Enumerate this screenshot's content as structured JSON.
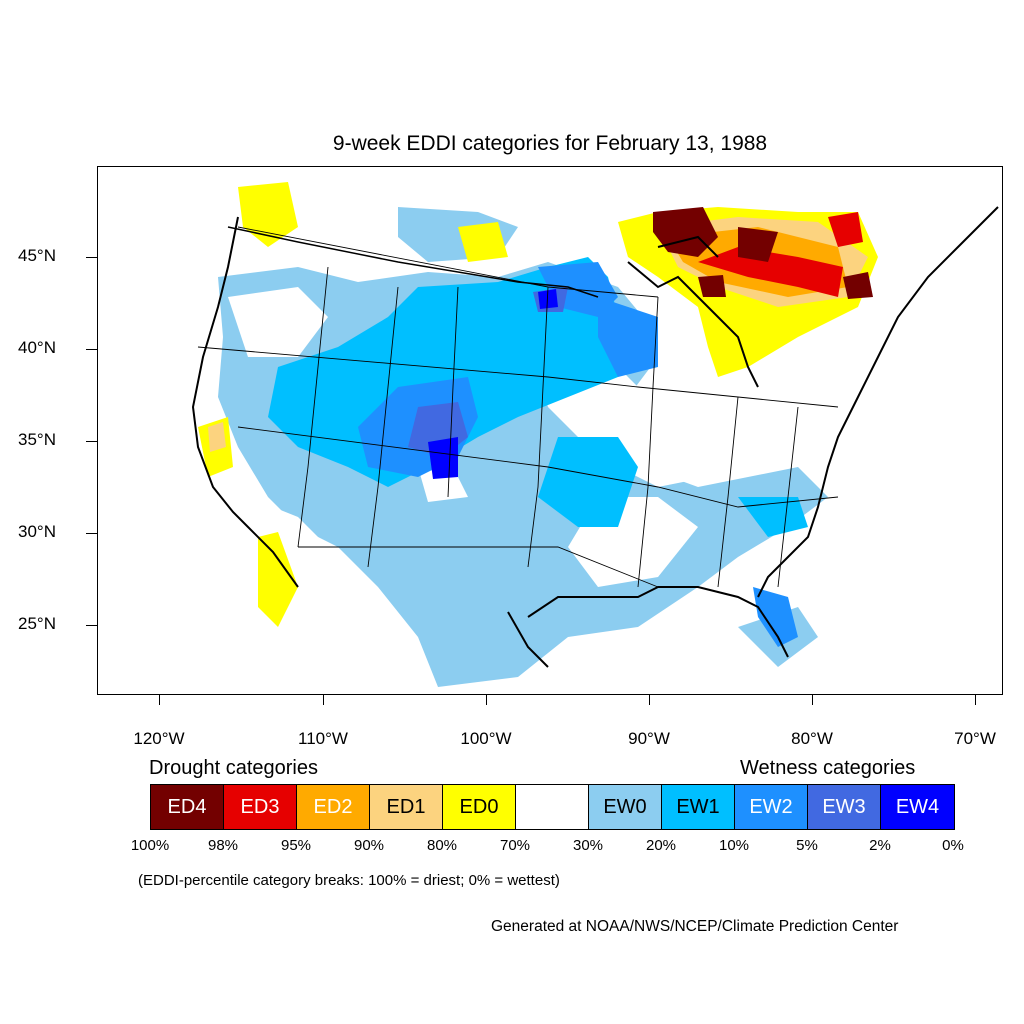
{
  "title": "9-week EDDI categories for February 13, 1988",
  "latitude_labels": [
    "45°N",
    "40°N",
    "35°N",
    "30°N",
    "25°N"
  ],
  "longitude_labels": [
    "120°W",
    "110°W",
    "100°W",
    "90°W",
    "80°W",
    "70°W"
  ],
  "legend": {
    "drought_heading": "Drought categories",
    "wetness_heading": "Wetness categories",
    "categories": [
      {
        "label": "ED4",
        "color": "#730000",
        "text_color": "#ffffff"
      },
      {
        "label": "ED3",
        "color": "#e60000",
        "text_color": "#ffffff"
      },
      {
        "label": "ED2",
        "color": "#ffaa00",
        "text_color": "#ffffff"
      },
      {
        "label": "ED1",
        "color": "#fcd37f",
        "text_color": "#000000"
      },
      {
        "label": "ED0",
        "color": "#ffff00",
        "text_color": "#000000"
      },
      {
        "label": "",
        "color": "#ffffff",
        "text_color": "#000000"
      },
      {
        "label": "EW0",
        "color": "#8ccdf0",
        "text_color": "#000000"
      },
      {
        "label": "EW1",
        "color": "#00bfff",
        "text_color": "#000000"
      },
      {
        "label": "EW2",
        "color": "#1e90ff",
        "text_color": "#ffffff"
      },
      {
        "label": "EW3",
        "color": "#4169e1",
        "text_color": "#ffffff"
      },
      {
        "label": "EW4",
        "color": "#0000ff",
        "text_color": "#ffffff"
      }
    ],
    "percentiles": [
      "100%",
      "98%",
      "95%",
      "90%",
      "80%",
      "70%",
      "30%",
      "20%",
      "10%",
      "5%",
      "2%",
      "0%"
    ]
  },
  "note": "(EDDI-percentile category breaks: 100% = driest; 0% = wettest)",
  "credit": "Generated at NOAA/NWS/NCEP/Climate Prediction Center"
}
